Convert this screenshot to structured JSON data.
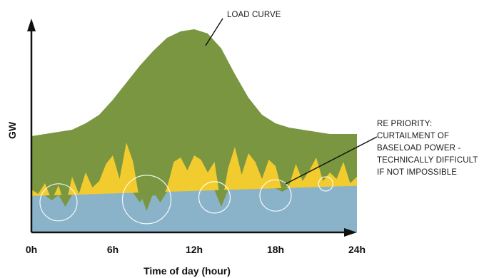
{
  "chart_data": {
    "type": "area",
    "xlabel": "Time of day (hour)",
    "ylabel": "GW",
    "x_ticks": [
      "0h",
      "6h",
      "12h",
      "18h",
      "24h"
    ],
    "xlim": [
      0,
      24
    ],
    "ylim": [
      0,
      100
    ],
    "grid": false,
    "series": [
      {
        "name": "LOAD CURVE",
        "color": "#7a9640",
        "x": [
          0,
          1,
          2,
          3,
          4,
          5,
          6,
          7,
          8,
          9,
          10,
          11,
          12,
          13,
          14,
          15,
          16,
          17,
          18,
          19,
          20,
          21,
          22,
          23,
          24
        ],
        "values": [
          45,
          46,
          47,
          48,
          51,
          55,
          62,
          70,
          78,
          85,
          91,
          94,
          95,
          93,
          86,
          74,
          63,
          55,
          51,
          49,
          48,
          47,
          46,
          46,
          46
        ]
      },
      {
        "color": "#f2cc2e",
        "x": [
          0,
          0.5,
          1,
          1.5,
          2,
          2.5,
          3,
          3.5,
          4,
          4.5,
          5,
          5.5,
          6,
          6.5,
          7,
          7.5,
          8,
          8.5,
          9,
          9.5,
          10,
          10.5,
          11,
          11.5,
          12,
          12.5,
          13,
          13.5,
          14,
          14.5,
          15,
          15.5,
          16,
          16.5,
          17,
          17.5,
          18,
          18.5,
          19,
          19.5,
          20,
          20.5,
          21,
          21.5,
          22,
          22.5,
          23,
          23.5,
          24
        ],
        "values": [
          20,
          18,
          23,
          15,
          22,
          12,
          26,
          18,
          28,
          21,
          24,
          32,
          36,
          25,
          42,
          33,
          14,
          10,
          17,
          14,
          21,
          33,
          35,
          29,
          36,
          34,
          28,
          33,
          12,
          30,
          40,
          27,
          37,
          33,
          25,
          34,
          31,
          19,
          22,
          32,
          24,
          29,
          35,
          24,
          28,
          25,
          33,
          23,
          26
        ]
      },
      {
        "color": "#8ab3c9",
        "x": [
          0,
          1,
          2,
          3,
          4,
          5,
          6,
          7,
          8,
          9,
          10,
          11,
          12,
          13,
          14,
          15,
          16,
          17,
          18,
          19,
          20,
          21,
          22,
          23,
          24
        ],
        "values": [
          17,
          17.2,
          17.4,
          17.6,
          17.8,
          18,
          18.2,
          18.4,
          18.6,
          18.8,
          19,
          19.2,
          19.4,
          19.6,
          19.8,
          20,
          20.2,
          20.4,
          20.6,
          20.8,
          21,
          21.2,
          21.4,
          21.6,
          21.8
        ]
      }
    ],
    "annotations": [
      {
        "text": "LOAD CURVE"
      },
      {
        "lines": [
          "RE PRIORITY:",
          "CURTAILMENT OF",
          "BASELOAD POWER -",
          "TECHNICALLY DIFFICULT",
          "IF NOT IMPOSSIBLE"
        ]
      }
    ],
    "highlight_dips_at_hours": [
      2,
      8.5,
      13.5,
      18,
      21.7
    ]
  }
}
